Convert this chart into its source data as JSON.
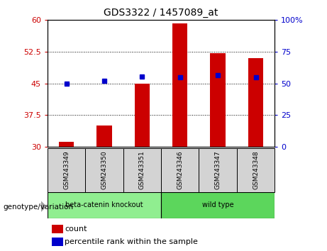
{
  "title": "GDS3322 / 1457089_at",
  "samples": [
    "GSM243349",
    "GSM243350",
    "GSM243351",
    "GSM243346",
    "GSM243347",
    "GSM243348"
  ],
  "bar_values": [
    31.2,
    35.0,
    45.0,
    59.2,
    52.2,
    51.0
  ],
  "bar_baseline": 30,
  "percentile_values": [
    45.0,
    45.6,
    46.6,
    46.5,
    47.0,
    46.5
  ],
  "bar_color": "#CC0000",
  "percentile_color": "#0000CC",
  "ylim_left": [
    30,
    60
  ],
  "ylim_right": [
    0,
    100
  ],
  "yticks_left": [
    30,
    37.5,
    45,
    52.5,
    60
  ],
  "yticks_right": [
    0,
    25,
    50,
    75,
    100
  ],
  "ytick_labels_left": [
    "30",
    "37.5",
    "45",
    "52.5",
    "60"
  ],
  "ytick_labels_right": [
    "0",
    "25",
    "50",
    "75",
    "100%"
  ],
  "left_tick_color": "#CC0000",
  "right_tick_color": "#0000CC",
  "group_label": "genotype/variation",
  "legend_count": "count",
  "legend_percentile": "percentile rank within the sample",
  "bg_color_plot": "#FFFFFF",
  "fig_bg_color": "#FFFFFF",
  "knockout_color": "#90EE90",
  "wildtype_color": "#5CD65C",
  "sample_bg_color": "#D3D3D3",
  "arrow_color": "#A0A0A0",
  "bar_width": 0.4
}
